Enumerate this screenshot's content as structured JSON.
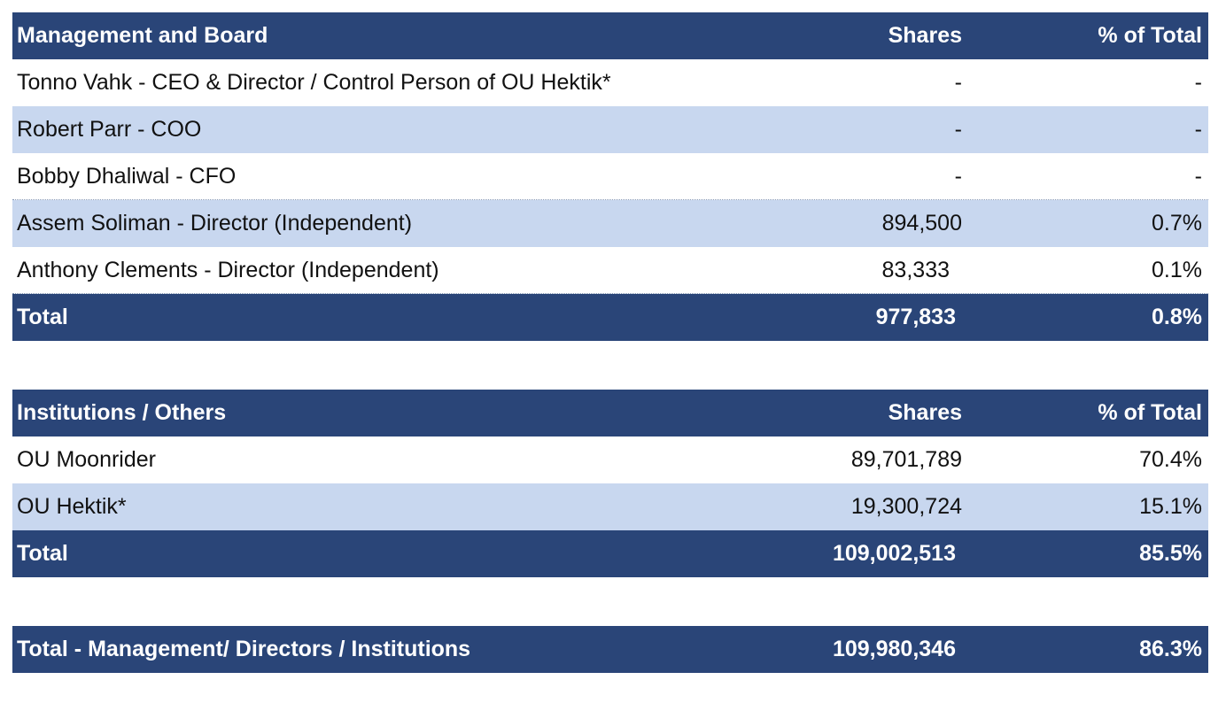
{
  "management": {
    "header": {
      "name": "Management and Board",
      "shares": "Shares",
      "pct": "% of Total"
    },
    "rows": [
      {
        "name": "Tonno Vahk - CEO & Director / Control Person of OU Hektik*",
        "shares": "-",
        "pct": "-"
      },
      {
        "name": "Robert Parr - COO",
        "shares": "-",
        "pct": "-"
      },
      {
        "name": "Bobby Dhaliwal - CFO",
        "shares": "-",
        "pct": "-"
      },
      {
        "name": "Assem Soliman - Director (Independent)",
        "shares": "894,500",
        "pct": "0.7%"
      },
      {
        "name": "Anthony Clements - Director (Independent)",
        "shares": "83,333",
        "pct": "0.1%"
      }
    ],
    "total": {
      "name": "Total",
      "shares": "977,833",
      "pct": "0.8%"
    }
  },
  "institutions": {
    "header": {
      "name": "Institutions / Others",
      "shares": "Shares",
      "pct": "% of Total"
    },
    "rows": [
      {
        "name": "OU Moonrider",
        "shares": "89,701,789",
        "pct": "70.4%"
      },
      {
        "name": "OU Hektik*",
        "shares": "19,300,724",
        "pct": "15.1%"
      }
    ],
    "total": {
      "name": "Total",
      "shares": "109,002,513",
      "pct": "85.5%"
    }
  },
  "grand_total": {
    "name": "Total - Management/ Directors / Institutions",
    "shares": "109,980,346",
    "pct": "86.3%"
  },
  "colors": {
    "header_bg": "#2a4578",
    "alt_row_bg": "#c8d7ef"
  }
}
